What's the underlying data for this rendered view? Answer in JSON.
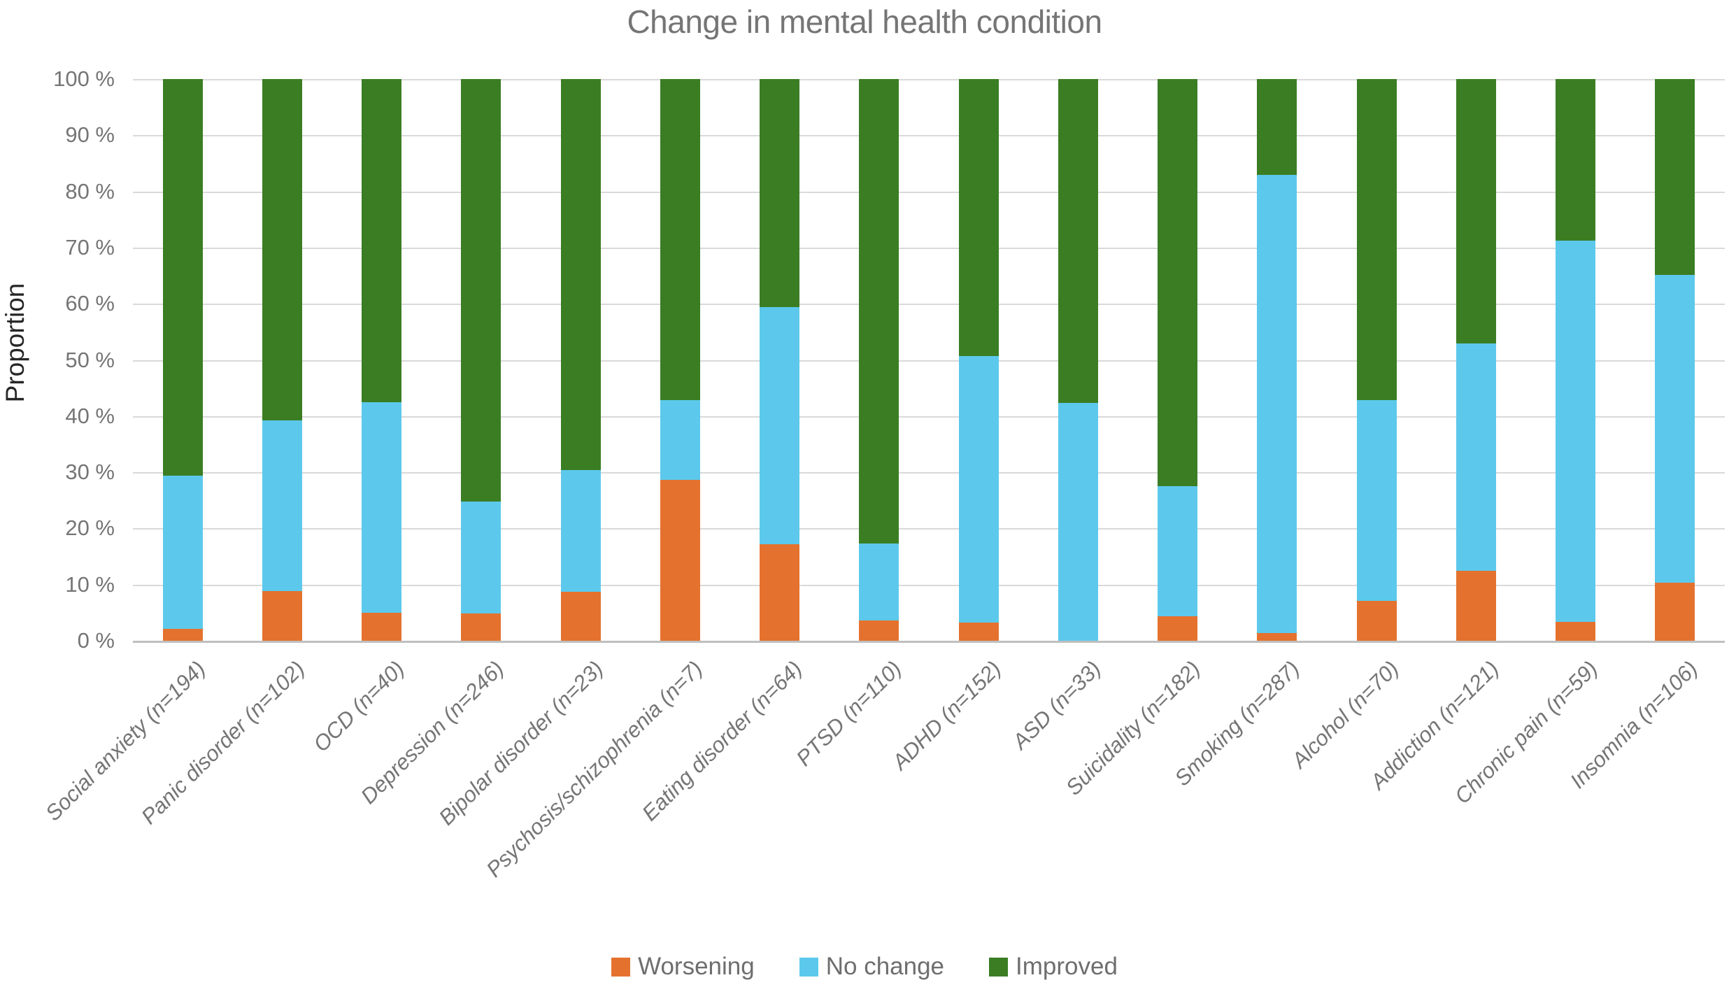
{
  "title": "Change in mental health condition",
  "y_axis": {
    "label": "Proportion",
    "tick_labels": [
      "100 %",
      "90 %",
      "80 %",
      "70 %",
      "60 %",
      "50 %",
      "40 %",
      "30 %",
      "20 %",
      "10 %",
      "0 %"
    ]
  },
  "legend": {
    "items": [
      "Worsening",
      "No change",
      "Improved"
    ]
  },
  "colors": {
    "worsening": "#e4722e",
    "no_change": "#5cc9ec",
    "improved": "#3b7d23",
    "gridline": "#d9d9d9",
    "axis_line": "#bfbfbf",
    "title_text": "#757575",
    "tick_text": "#757575",
    "axis_title_text": "#262626"
  },
  "chart_data": {
    "type": "bar",
    "stacked": true,
    "percent": true,
    "title": "Change in mental health condition",
    "ylabel": "Proportion",
    "ylim": [
      0,
      100
    ],
    "grid": true,
    "legend_position": "bottom",
    "categories": [
      "Social anxiety (n=194)",
      "Panic disorder (n=102)",
      "OCD (n=40)",
      "Depression (n=246)",
      "Bipolar disorder (n=23)",
      "Psychosis/schizophrenia (n=7)",
      "Eating disorder (n=64)",
      "PTSD (n=110)",
      "ADHD (n=152)",
      "ASD (n=33)",
      "Suicidality (n=182)",
      "Smoking (n=287)",
      "Alcohol (n=70)",
      "Addiction (n=121)",
      "Chronic pain (n=59)",
      "Insomnia (n=106)"
    ],
    "series": [
      {
        "name": "Worsening",
        "color": "#e4722e",
        "values": [
          2.1,
          8.8,
          5.0,
          4.9,
          8.7,
          28.6,
          17.2,
          3.6,
          3.3,
          0.0,
          4.4,
          1.4,
          7.1,
          12.4,
          3.4,
          10.4
        ]
      },
      {
        "name": "No change",
        "color": "#5cc9ec",
        "values": [
          27.3,
          30.4,
          37.5,
          19.9,
          21.7,
          14.3,
          42.2,
          13.7,
          47.4,
          42.4,
          23.1,
          81.5,
          35.8,
          40.5,
          67.8,
          54.7
        ]
      },
      {
        "name": "Improved",
        "color": "#3b7d23",
        "values": [
          70.6,
          60.8,
          57.5,
          75.2,
          69.6,
          57.1,
          40.6,
          82.7,
          49.3,
          57.6,
          72.5,
          17.1,
          57.1,
          47.1,
          28.8,
          34.9
        ]
      }
    ]
  }
}
